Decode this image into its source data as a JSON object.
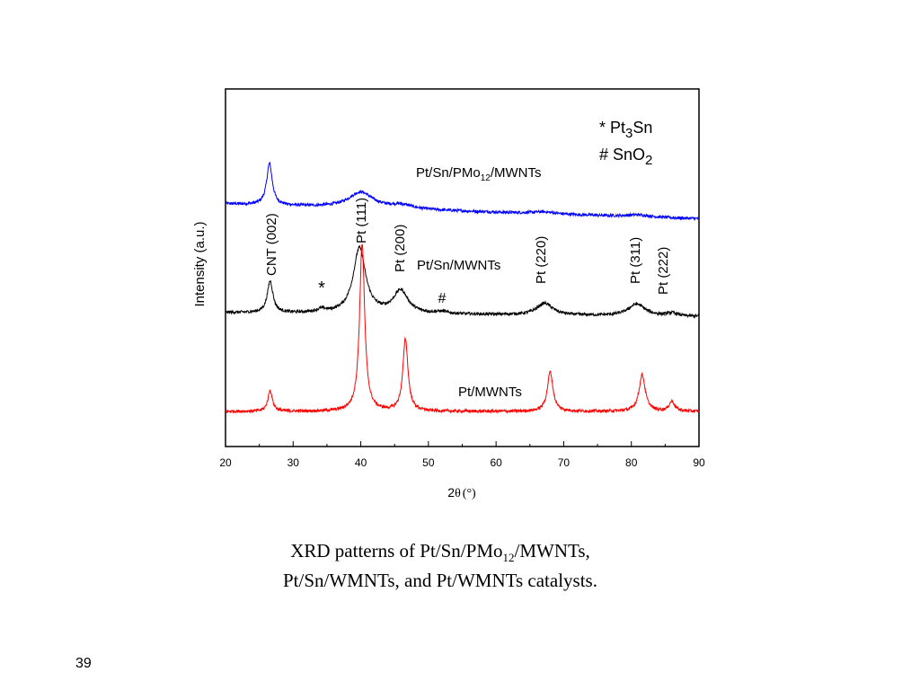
{
  "chart_data": {
    "type": "line",
    "xlabel_base": "2",
    "xlabel_theta": "θ",
    "xlabel_unit": "(°)",
    "ylabel": "Intensity (a.u.)",
    "xlim": [
      20,
      90
    ],
    "x_ticks": [
      "20",
      "30",
      "40",
      "50",
      "60",
      "70",
      "80",
      "90"
    ],
    "grid": false,
    "series": [
      {
        "name_parts": [
          "Pt/Sn/PMo",
          "12",
          "/MWNTs"
        ],
        "color": "#0000ff",
        "baseline": 2.1,
        "baseline_end": 1.95,
        "peaks": [
          [
            26.5,
            0.42,
            0.5
          ],
          [
            40.0,
            0.16,
            2.2
          ],
          [
            46.0,
            0.04,
            2.0
          ],
          [
            67.0,
            0.02,
            2.0
          ],
          [
            81.0,
            0.02,
            2.0
          ]
        ]
      },
      {
        "name": "Pt/Sn/MWNTs",
        "color": "#000000",
        "baseline": 1.0,
        "baseline_end": 0.96,
        "peaks": [
          [
            26.6,
            0.32,
            0.5
          ],
          [
            34.2,
            0.03,
            0.8
          ],
          [
            39.8,
            0.66,
            1.1
          ],
          [
            45.9,
            0.23,
            1.3
          ],
          [
            52.0,
            0.02,
            1.0
          ],
          [
            67.2,
            0.12,
            1.4
          ],
          [
            80.8,
            0.12,
            1.5
          ],
          [
            86.0,
            0.03,
            0.9
          ]
        ]
      },
      {
        "name": "Pt/MWNTs",
        "color": "#ff0000",
        "baseline": 0.0,
        "baseline_end": 0.0,
        "peaks": [
          [
            26.6,
            0.21,
            0.4
          ],
          [
            40.2,
            1.7,
            0.45
          ],
          [
            46.6,
            0.73,
            0.45
          ],
          [
            68.0,
            0.4,
            0.5
          ],
          [
            81.6,
            0.37,
            0.55
          ],
          [
            86.0,
            0.1,
            0.5
          ]
        ]
      }
    ],
    "peak_labels": [
      "CNT (002)",
      "Pt (111)",
      "Pt (200)",
      "Pt (220)",
      "Pt (311)",
      "Pt (222)"
    ],
    "markers": {
      "star": "*",
      "hash": "#"
    },
    "legend": {
      "line1_prefix": "* Pt",
      "line1_sub": "3",
      "line1_suffix": "Sn",
      "line2_prefix": "# SnO",
      "line2_sub": "2"
    }
  },
  "caption": {
    "line1_prefix": "XRD patterns of Pt/Sn/PMo",
    "line1_sub": "12",
    "line1_suffix": "/MWNTs,",
    "line2": "Pt/Sn/WMNTs, and Pt/WMNTs catalysts."
  },
  "slide_number": "39"
}
